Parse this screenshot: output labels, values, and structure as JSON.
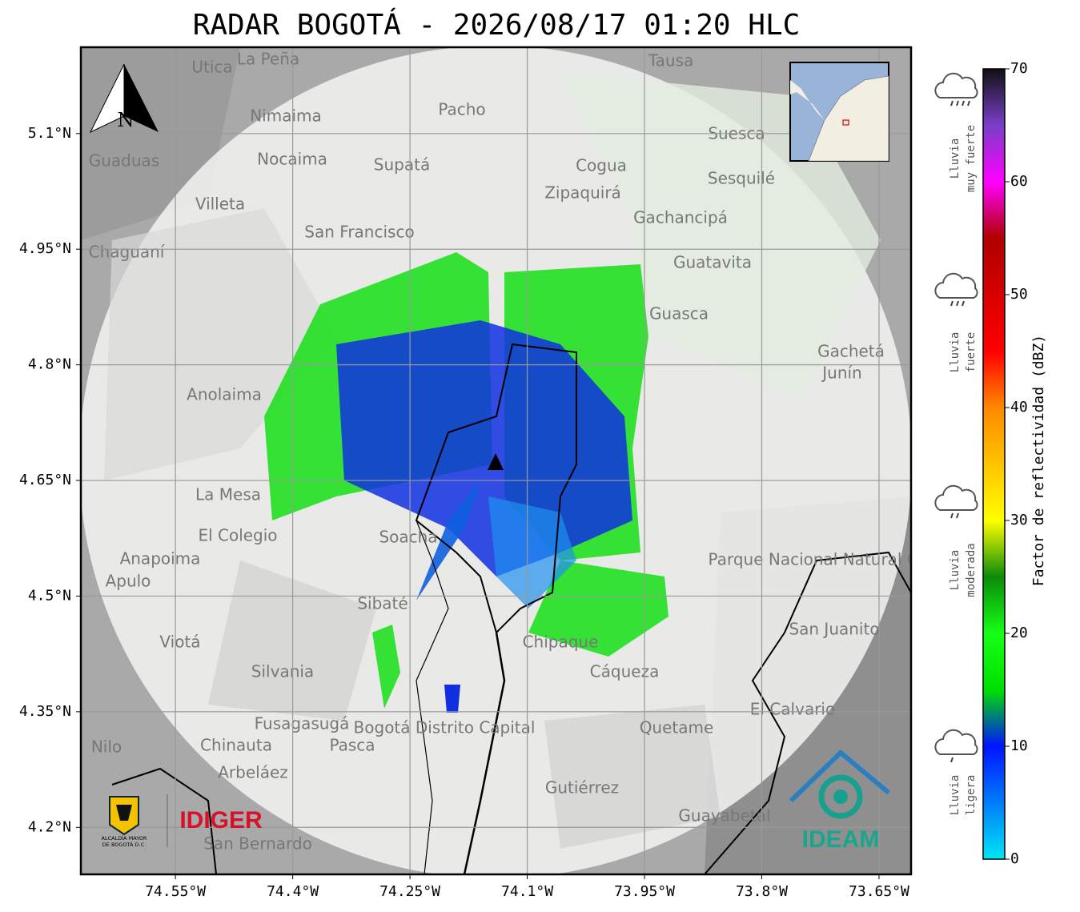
{
  "title": "RADAR BOGOTÁ - 2026/08/17 01:20 HLC",
  "map": {
    "xlim": [
      -74.671,
      -73.609
    ],
    "ylim": [
      4.139,
      5.212
    ],
    "grid": true,
    "xticks": [
      {
        "value": -74.55,
        "label": "74.55°W"
      },
      {
        "value": -74.4,
        "label": "74.4°W"
      },
      {
        "value": -74.25,
        "label": "74.25°W"
      },
      {
        "value": -74.1,
        "label": "74.1°W"
      },
      {
        "value": -73.95,
        "label": "73.95°W"
      },
      {
        "value": -73.8,
        "label": "73.8°W"
      },
      {
        "value": -73.65,
        "label": "73.65°W"
      }
    ],
    "yticks": [
      {
        "value": 5.1,
        "label": "5.1°N"
      },
      {
        "value": 4.95,
        "label": "4.95°N"
      },
      {
        "value": 4.8,
        "label": "4.8°N"
      },
      {
        "value": 4.65,
        "label": "4.65°N"
      },
      {
        "value": 4.5,
        "label": "4.5°N"
      },
      {
        "value": 4.35,
        "label": "4.35°N"
      },
      {
        "value": 4.2,
        "label": "4.2°N"
      }
    ],
    "north": "N",
    "place_labels": [
      "Utica",
      "La Peña",
      "Tausa",
      "Pacho",
      "Nimaima",
      "Guaduas",
      "Nocaima",
      "Supatá",
      "Cogua",
      "Suesca",
      "Sesquilé",
      "Zipaquirá",
      "Villeta",
      "Gachancipá",
      "San Francisco",
      "Chaguaní",
      "Guatavita",
      "Guasca",
      "Gachetá",
      "Junín",
      "Anolaima",
      "La Mesa",
      "El Colegio",
      "Soacha",
      "Anapoima",
      "Apulo",
      "Sibaté",
      "San Juanito",
      "Viotá",
      "Silvania",
      "Cáqueza",
      "Chipaque",
      "Quetame",
      "El Calvario",
      "Fusagasugá",
      "Bogotá Distrito Capital",
      "Chinauta",
      "Pasca",
      "Nilo",
      "Arbeláez",
      "Gutiérrez",
      "Guayabetal",
      "San Bernardo",
      "Parque Nacional Natural Chingaza"
    ]
  },
  "colorbar": {
    "label": "Factor de reflectividad (dBZ)",
    "lim": [
      0,
      70
    ],
    "ticks": [
      0,
      10,
      20,
      30,
      40,
      50,
      60,
      70
    ],
    "colorscale": [
      [
        0,
        "#00e5f5"
      ],
      [
        10,
        "#0014ff"
      ],
      [
        15,
        "#00e000"
      ],
      [
        20,
        "#16ff16"
      ],
      [
        25,
        "#0a8c0a"
      ],
      [
        30,
        "#ffff00"
      ],
      [
        40,
        "#ff8800"
      ],
      [
        45,
        "#ff0000"
      ],
      [
        55,
        "#b00000"
      ],
      [
        60,
        "#ff00ff"
      ],
      [
        65,
        "#7a3ec8"
      ],
      [
        70,
        "#111111"
      ]
    ]
  },
  "intensity_legend": [
    [
      "Lluvia",
      "muy fuerte"
    ],
    [
      "Lluvia",
      "fuerte"
    ],
    [
      "Lluvia",
      "moderada"
    ],
    [
      "Lluvia",
      "ligera"
    ]
  ],
  "logos": {
    "idiger": "IDIGER",
    "alcaldia": [
      "ALCALDÍA MAYOR",
      "DE BOGOTÁ D.C."
    ],
    "ideam": "IDEAM"
  }
}
